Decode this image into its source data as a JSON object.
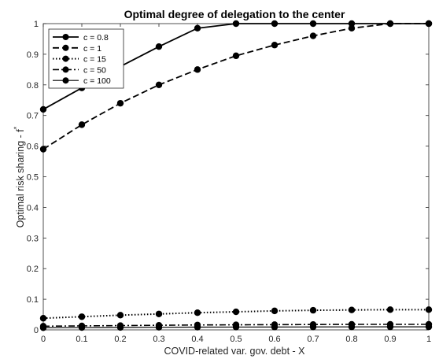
{
  "chart_data": {
    "type": "line",
    "title": "Optimal degree of delegation to the center",
    "xlabel": "COVID-related var. gov. debt - X",
    "ylabel": "Optimal risk sharing - f",
    "ylabel_superscript": "*",
    "xlim": [
      0,
      1
    ],
    "ylim": [
      0,
      1
    ],
    "xticks": [
      "0",
      "0.1",
      "0.2",
      "0.3",
      "0.4",
      "0.5",
      "0.6",
      "0.7",
      "0.8",
      "0.9",
      "1"
    ],
    "yticks": [
      "0",
      "0.1",
      "0.2",
      "0.3",
      "0.4",
      "0.5",
      "0.6",
      "0.7",
      "0.8",
      "0.9",
      "1"
    ],
    "grid": false,
    "legend_position": "top-left",
    "x": [
      0,
      0.1,
      0.2,
      0.3,
      0.4,
      0.5,
      0.6,
      0.7,
      0.8,
      0.9,
      1.0
    ],
    "series": [
      {
        "name": "c = 0.8",
        "style": "solid",
        "values": [
          0.72,
          0.79,
          0.86,
          0.925,
          0.985,
          1.0,
          1.0,
          1.0,
          1.0,
          1.0,
          1.0
        ]
      },
      {
        "name": "c = 1",
        "style": "dashed",
        "values": [
          0.59,
          0.67,
          0.74,
          0.8,
          0.85,
          0.895,
          0.93,
          0.96,
          0.985,
          1.0,
          1.0
        ]
      },
      {
        "name": "c = 15",
        "style": "dotted",
        "values": [
          0.038,
          0.043,
          0.048,
          0.052,
          0.056,
          0.059,
          0.062,
          0.064,
          0.065,
          0.066,
          0.066
        ]
      },
      {
        "name": "c = 50",
        "style": "dashdot",
        "values": [
          0.012,
          0.013,
          0.014,
          0.015,
          0.016,
          0.0165,
          0.017,
          0.0175,
          0.018,
          0.018,
          0.018
        ]
      },
      {
        "name": "c = 100",
        "style": "solid-thin",
        "values": [
          0.007,
          0.0075,
          0.008,
          0.0085,
          0.009,
          0.0092,
          0.0094,
          0.0096,
          0.0098,
          0.0099,
          0.01
        ]
      }
    ]
  }
}
